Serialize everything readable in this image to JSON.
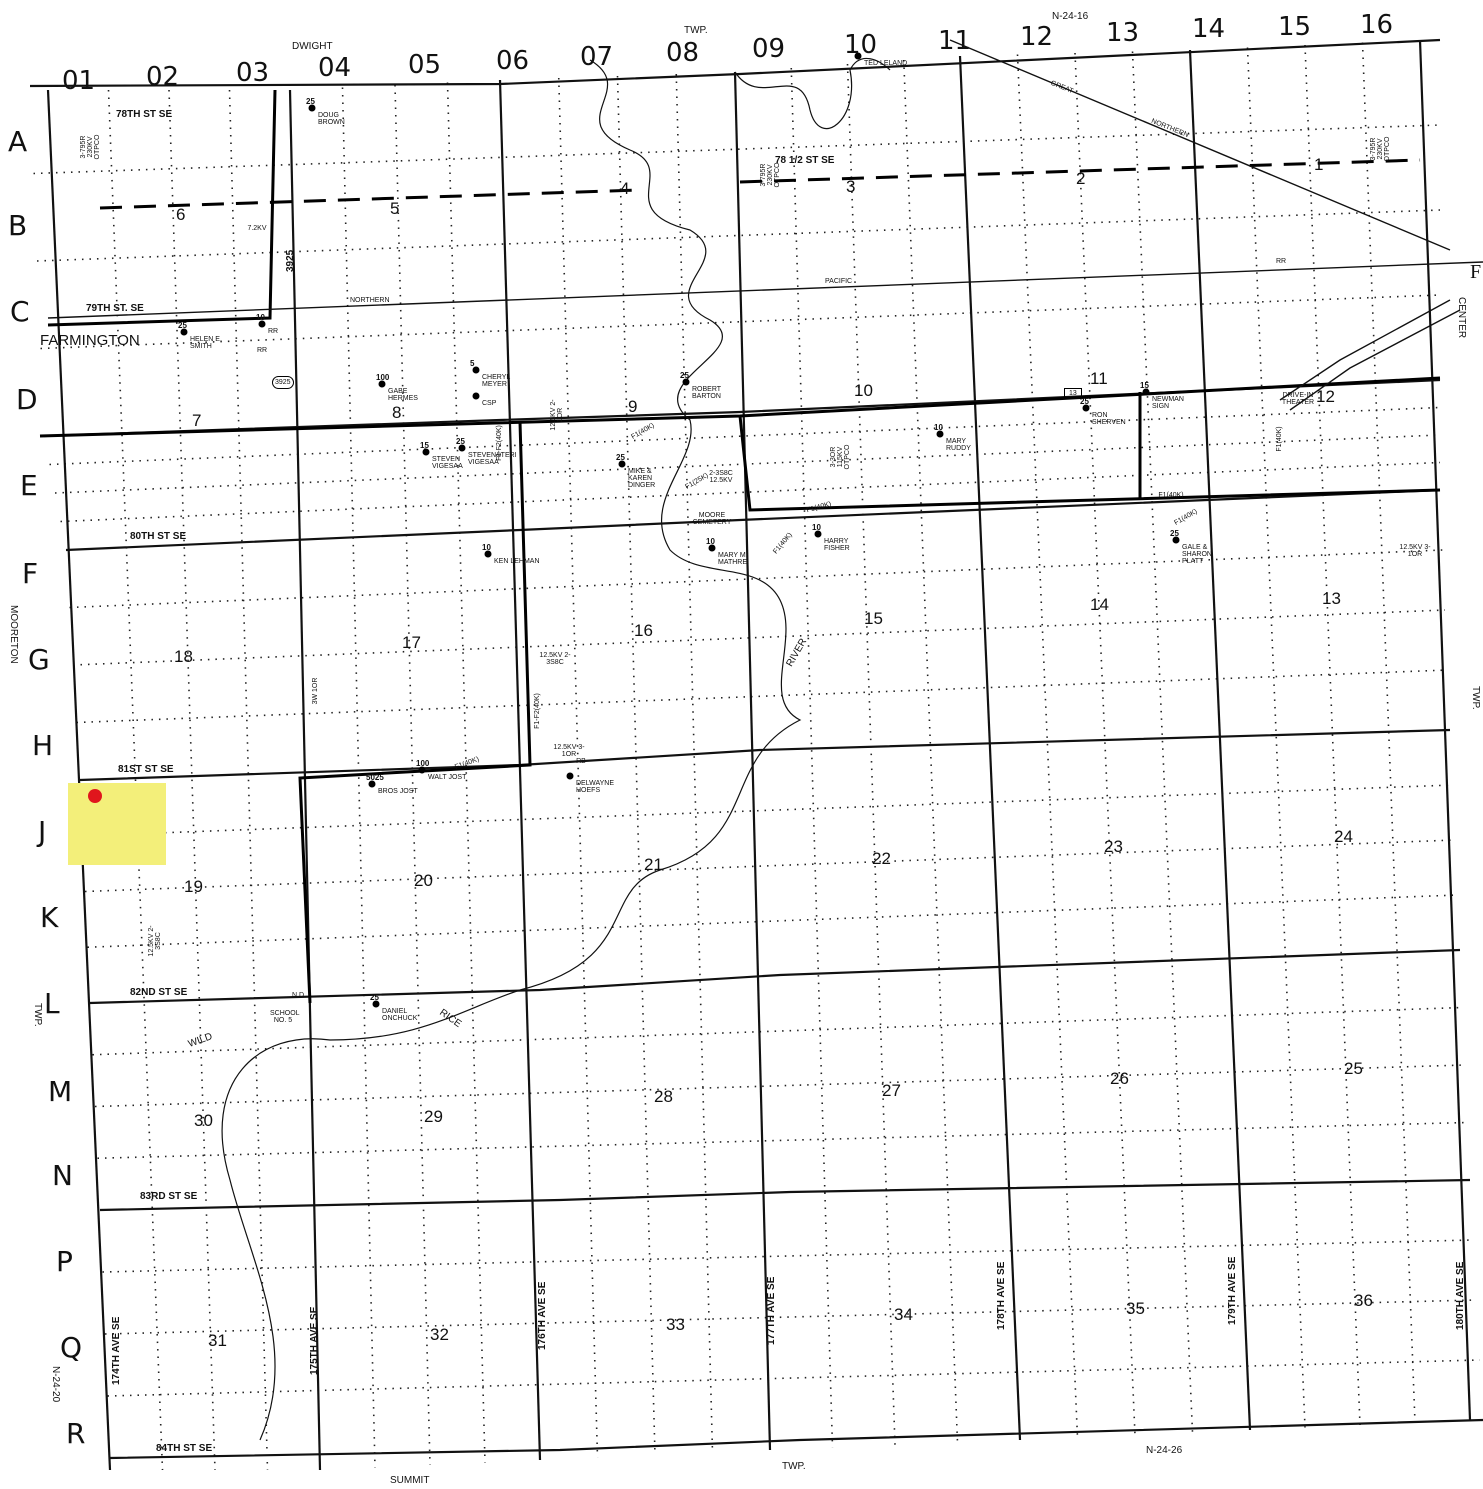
{
  "columns": [
    "01",
    "02",
    "03",
    "04",
    "05",
    "06",
    "07",
    "08",
    "09",
    "10",
    "11",
    "12",
    "13",
    "14",
    "15",
    "16"
  ],
  "rows": [
    "A",
    "B",
    "C",
    "D",
    "E",
    "F",
    "G",
    "H",
    "J",
    "K",
    "L",
    "M",
    "N",
    "P",
    "Q",
    "R"
  ],
  "sections": [
    "6",
    "5",
    "4",
    "3",
    "2",
    "1",
    "7",
    "8",
    "9",
    "10",
    "11",
    "12",
    "18",
    "17",
    "16",
    "15",
    "14",
    "13",
    "19",
    "20",
    "21",
    "22",
    "23",
    "24",
    "30",
    "29",
    "28",
    "27",
    "26",
    "25",
    "31",
    "32",
    "33",
    "34",
    "35",
    "36"
  ],
  "roads": {
    "r78": "78TH ST SE",
    "r78half": "78 1/2 ST SE",
    "r79": "79TH ST. SE",
    "r80": "80TH ST SE",
    "r81": "81ST ST SE",
    "r82": "82ND ST SE",
    "r83": "83RD ST SE",
    "r84": "84TH ST SE",
    "a174": "174TH AVE SE",
    "a175": "175TH AVE SE",
    "a176": "176TH AVE SE",
    "a177": "177TH AVE SE",
    "a178": "178TH AVE SE",
    "a179": "179TH AVE SE",
    "a180": "180TH AVE SE",
    "hwy3925": "3925",
    "hwy13": "13"
  },
  "places": {
    "farmington": "FARMINGTON",
    "dwight": "DWIGHT",
    "twp_top": "TWP.",
    "n2416": "N-24-16",
    "mooreton": "MOORETON",
    "twp_left": "TWP.",
    "center": "CENTER",
    "twp_right": "TWP.",
    "n2420": "N-24-20",
    "summit": "SUMMIT",
    "twp_bottom": "TWP.",
    "n2426": "N-24-26",
    "edge_letter": "F"
  },
  "railroad": [
    "GREAT",
    "NORTHERN",
    "PACIFIC",
    "NORTHERN",
    "RR",
    "RR"
  ],
  "river": [
    "RIVER",
    "RICE",
    "WILD"
  ],
  "landmarks": {
    "moore_cemetery": "MOORE CEMETERY",
    "drive_in": "DRIVE-IN THEATER",
    "school": "SCHOOL NO. 5",
    "nd": "N.D."
  },
  "customers": [
    {
      "kva": "25",
      "name": "DOUG BROWN"
    },
    {
      "kva": "",
      "name": "TED LELAND"
    },
    {
      "kva": "25",
      "name": "HELEN E. SMITH"
    },
    {
      "kva": "10",
      "name": "RR"
    },
    {
      "kva": "100",
      "name": "GABE HERMES"
    },
    {
      "kva": "5",
      "name": "CHERYL MEYER"
    },
    {
      "kva": "",
      "name": "CSP"
    },
    {
      "kva": "25",
      "name": "ROBERT BARTON"
    },
    {
      "kva": "15",
      "name": "STEVEN VIGESAA"
    },
    {
      "kva": "25",
      "name": "STEVEN&TERI VIGESAA"
    },
    {
      "kva": "25",
      "name": "MIKE & KAREN DINGER"
    },
    {
      "kva": "10",
      "name": "MARY RUDDY"
    },
    {
      "kva": "25",
      "name": "RON SHERVEN"
    },
    {
      "kva": "15",
      "name": "NEWMAN SIGN"
    },
    {
      "kva": "10",
      "name": "KEN LEHMAN"
    },
    {
      "kva": "10",
      "name": "MARY M. MATHRE"
    },
    {
      "kva": "10",
      "name": "HARRY FISHER"
    },
    {
      "kva": "25",
      "name": "GALE & SHARON PLATT"
    },
    {
      "kva": "5025",
      "name": "BROS JOST"
    },
    {
      "kva": "100",
      "name": "WALT JOST"
    },
    {
      "kva": "",
      "name": "DELWAYNE HOEFS"
    },
    {
      "kva": "25",
      "name": "DANIEL ONCHUCK"
    }
  ],
  "line_labels": [
    "7.2KV",
    "3-795R 230KV OTPCO",
    "3-795R 230KV OTPCO",
    "3-795R 230KV OTPCO",
    "12.5KV 2-1OR",
    "12.5KV 2-3S8C",
    "2-3S8C 12.5KV",
    "F1(40K)",
    "F1(25K)",
    "F1-F2(40K)",
    "F1-F2(40K)",
    "F1(40K)",
    "F1(40K)",
    "F1(40K)",
    "F1(40K)",
    "F1(40K)",
    "F1(40K)",
    "12.5KV 3-1OR",
    "3-3OR 115KV OTPCO",
    "12.5KV 2-3S8C",
    "3W 1OR",
    "12.5KV 3-1OR",
    "RB"
  ],
  "highlight_color": "#f3ef7a",
  "marker_color": "#e0161c"
}
